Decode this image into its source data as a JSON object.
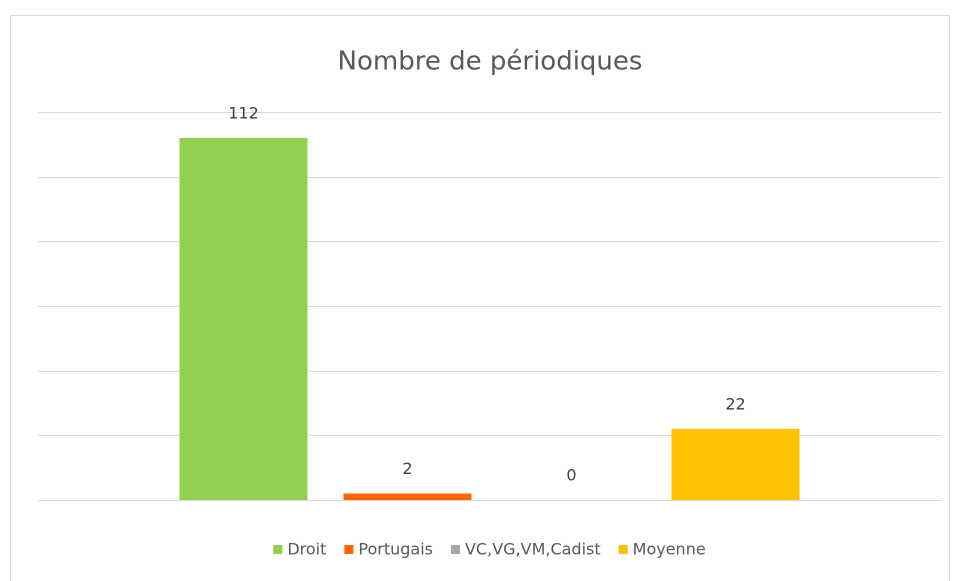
{
  "chart_data": {
    "type": "bar",
    "title": "Nombre de périodiques",
    "series": [
      {
        "name": "Droit",
        "color": "#92d050",
        "values": [
          112
        ]
      },
      {
        "name": "Portugais",
        "color": "#ff6600",
        "values": [
          2
        ]
      },
      {
        "name": "VC,VG,VM,Cadist",
        "color": "#a5a5a5",
        "values": [
          0
        ]
      },
      {
        "name": "Moyenne",
        "color": "#ffc000",
        "values": [
          22
        ]
      }
    ],
    "ylim": [
      0,
      120
    ],
    "yticks": [
      0,
      20,
      40,
      60,
      80,
      100,
      120
    ],
    "grid": true,
    "legend": "bottom"
  }
}
